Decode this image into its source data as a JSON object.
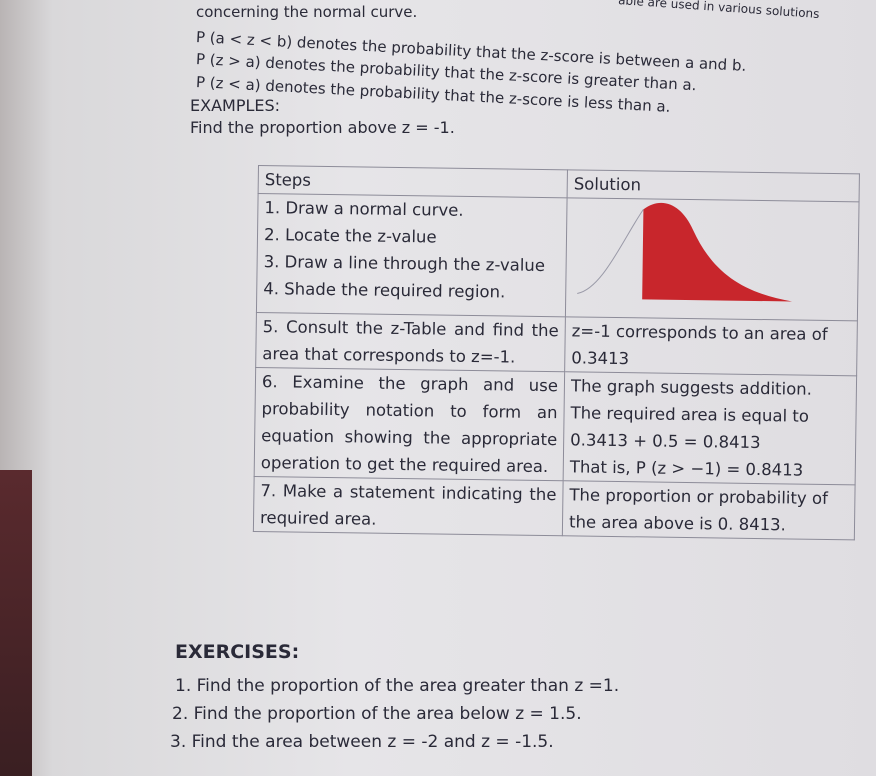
{
  "intro": {
    "line_left": "concerning the normal curve.",
    "line_right": "able are used in various solutions",
    "definitions": [
      "P (a < z < b) denotes the probability that the z-score is between a and b.",
      "P (z > a) denotes the probability that the z-score is greater than a.",
      "P (z < a) denotes the probability that the z-score is less than a."
    ]
  },
  "examples": {
    "heading": "EXAMPLES:",
    "problem": "Find the proportion above z = -1."
  },
  "table": {
    "headers": [
      "Steps",
      "Solution"
    ],
    "rows": [
      {
        "steps": [
          "1. Draw a normal curve.",
          "2. Locate the z-value",
          "3. Draw a line through the z-value",
          "4. Shade the required region."
        ],
        "solution": []
      },
      {
        "steps": [
          "5. Consult the z-Table and find the area that corresponds to z=-1."
        ],
        "solution": [
          "z=-1 corresponds to an area of 0.3413"
        ]
      },
      {
        "steps": [
          "6. Examine the graph and use probability notation to form an equation showing the appropriate operation to get the required area."
        ],
        "solution": [
          "The graph suggests addition.",
          "The required area is equal to",
          "0.3413 + 0.5 = 0.8413",
          "That is, P (z > −1) = 0.8413"
        ]
      },
      {
        "steps": [
          "7. Make a statement indicating the required area."
        ],
        "solution": [
          "The proportion or probability of the area above is 0. 8413."
        ]
      }
    ]
  },
  "exercises": {
    "heading": "EXERCISES:",
    "items": [
      "1. Find the proportion of the area greater than z =1.",
      "2. Find the proportion of the area below z = 1.5.",
      "3. Find the area between z = -2 and z = -1.5."
    ]
  }
}
